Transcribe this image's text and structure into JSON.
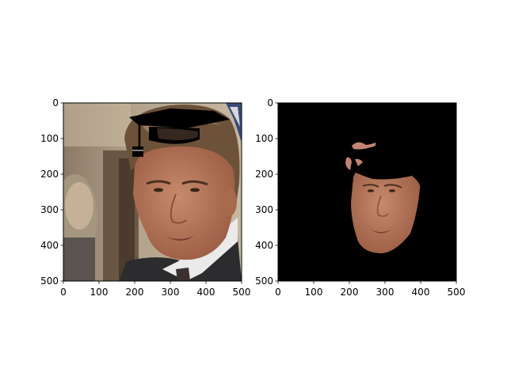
{
  "figure": {
    "panels": [
      {
        "name": "left",
        "content": "photo-with-graduation-cap-overlay",
        "x_ticks": [
          "0",
          "100",
          "200",
          "300",
          "400",
          "500"
        ],
        "y_ticks": [
          "0",
          "100",
          "200",
          "300",
          "400",
          "500"
        ],
        "xlim": [
          0,
          500
        ],
        "ylim": [
          500,
          0
        ]
      },
      {
        "name": "right",
        "content": "segmented-face-mask",
        "x_ticks": [
          "0",
          "100",
          "200",
          "300",
          "400",
          "500"
        ],
        "y_ticks": [
          "0",
          "100",
          "200",
          "300",
          "400",
          "500"
        ],
        "xlim": [
          0,
          500
        ],
        "ylim": [
          500,
          0
        ]
      }
    ],
    "colors": {
      "photo_bg_left": "#7a6a58",
      "photo_bg_right": "#b8a68e",
      "hair": "#6b5238",
      "skin": "#b8785e",
      "suit": "#2c2c2e",
      "shirt": "#eaeaea",
      "cap": "#000000",
      "mask_bg": "#000000"
    }
  }
}
